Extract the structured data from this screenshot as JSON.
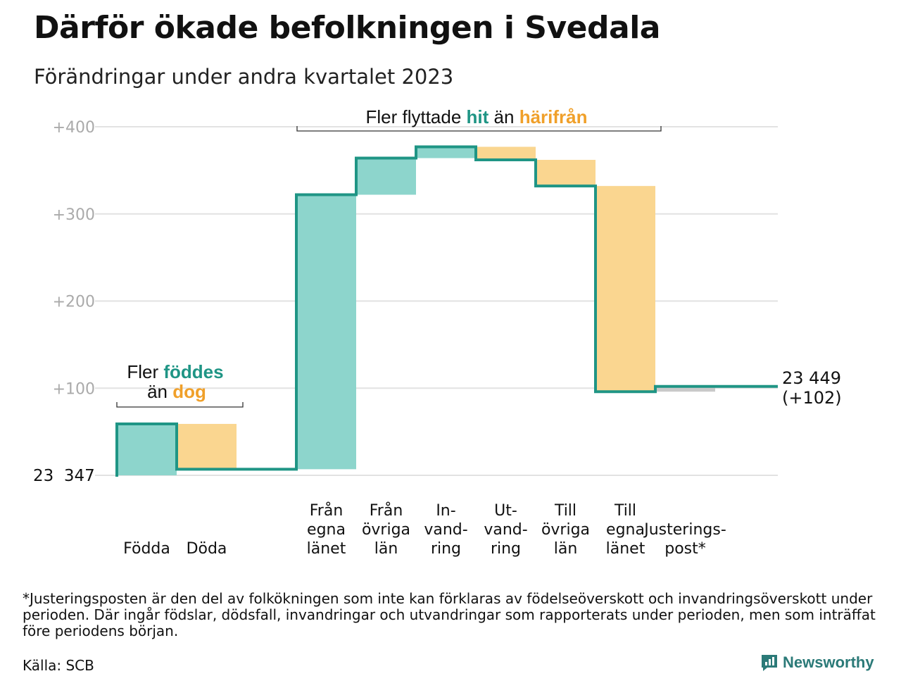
{
  "header": {
    "title": "Därför ökade befolkningen i Svedala",
    "subtitle": "Förändringar under andra kvartalet 2023"
  },
  "colors": {
    "increase_fill": "#8dd5cc",
    "decrease_fill": "#fad690",
    "line": "#1f9585",
    "teal_text": "#1f9585",
    "orange_text": "#f0a02a",
    "adjust_fill": "#c9c9c9",
    "grid": "#e2e2e2",
    "axis_text": "#aaaaaa"
  },
  "annotations": {
    "births": {
      "line1_prefix": "Fler ",
      "line1_word": "föddes",
      "line2_prefix": "än ",
      "line2_word": "dog"
    },
    "moves": {
      "prefix": "Fler flyttade ",
      "word1": "hit",
      "middle": " än ",
      "word2": "härifrån"
    }
  },
  "chart_data": {
    "type": "waterfall",
    "start_label": "23  347",
    "start_value": 0,
    "y_ticks": [
      {
        "value": 400,
        "label": "+400"
      },
      {
        "value": 300,
        "label": "+300"
      },
      {
        "value": 200,
        "label": "+200"
      },
      {
        "value": 100,
        "label": "+100"
      }
    ],
    "ylim": [
      0,
      400
    ],
    "steps": [
      {
        "key": "fodda",
        "label": [
          "Födda"
        ],
        "change": 59,
        "kind": "increase"
      },
      {
        "key": "doda",
        "label": [
          "Döda"
        ],
        "change": -52,
        "kind": "decrease"
      },
      {
        "key": "gap",
        "label": [],
        "change": 0,
        "kind": "gap"
      },
      {
        "key": "fran_egna",
        "label": [
          "Från",
          "egna",
          "länet"
        ],
        "change": 315,
        "kind": "increase"
      },
      {
        "key": "fran_ovriga",
        "label": [
          "Från",
          "övriga",
          "län"
        ],
        "change": 42,
        "kind": "increase"
      },
      {
        "key": "invandring",
        "label": [
          "In-",
          "vand-",
          "ring"
        ],
        "change": 13,
        "kind": "increase"
      },
      {
        "key": "utvandring",
        "label": [
          "Ut-",
          "vand-",
          "ring"
        ],
        "change": -15,
        "kind": "decrease"
      },
      {
        "key": "till_ovriga",
        "label": [
          "Till",
          "övriga",
          "län"
        ],
        "change": -30,
        "kind": "decrease"
      },
      {
        "key": "till_egna",
        "label": [
          "Till",
          "egna",
          "länet"
        ],
        "change": -236,
        "kind": "decrease"
      },
      {
        "key": "justering",
        "label": [
          "Justerings-",
          "post*"
        ],
        "change": 6,
        "kind": "adjust"
      }
    ],
    "end_label": [
      "23 449",
      "(+102)"
    ],
    "end_value": 102
  },
  "footer": {
    "footnote": "*Justeringsposten är den del av folkökningen som inte kan förklaras av födelseöverskott och invandringsöverskott under perioden. Där ingår födslar, dödsfall, invandringar och utvandringar som rapporterats under perioden, men som inträffat före periodens början.",
    "source": "Källa: SCB",
    "brand": "Newsworthy"
  }
}
